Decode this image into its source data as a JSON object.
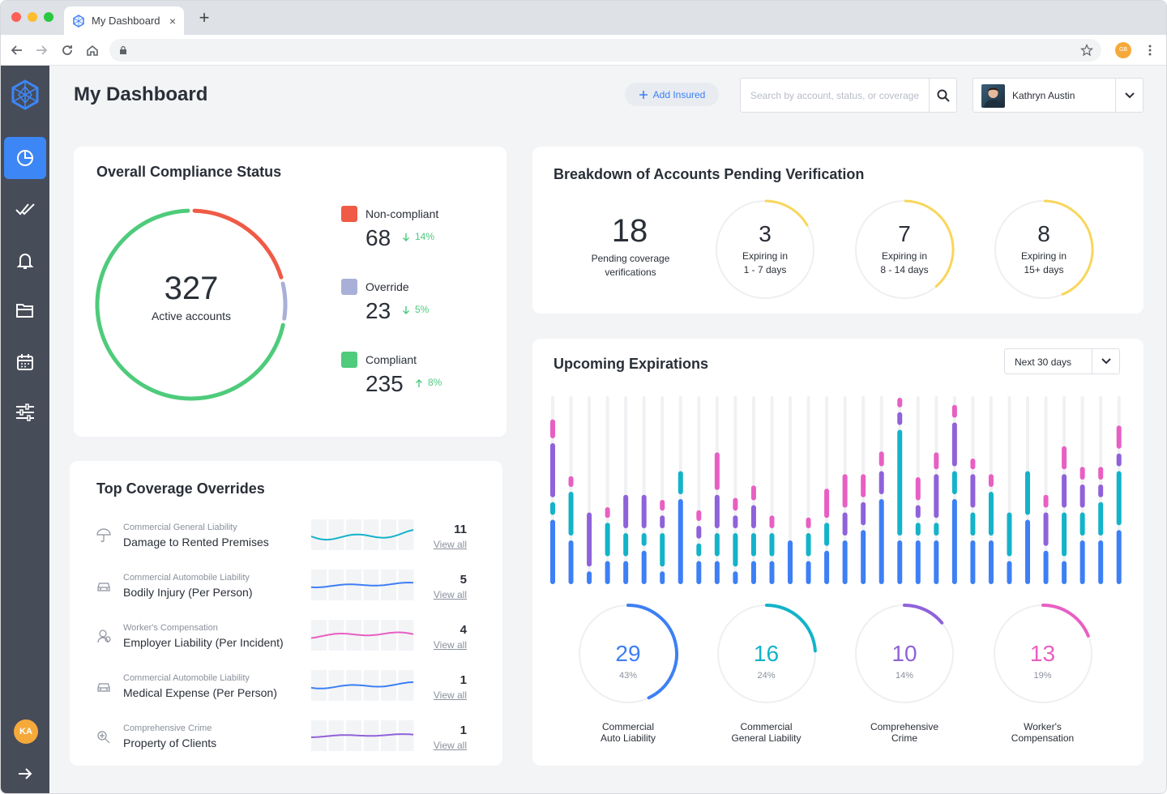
{
  "browser": {
    "tab_title": "My Dashboard",
    "tab_close": "×",
    "new_tab": "+",
    "profile_initials": "GB"
  },
  "header": {
    "title": "My Dashboard",
    "add_insured": "Add Insured",
    "search_placeholder": "Search by account, status, or coverage",
    "user_name": "Kathryn Austin"
  },
  "sidebar": {
    "items": [
      "dashboard",
      "approvals",
      "notifications",
      "files",
      "calendar",
      "settings"
    ],
    "user_initials": "KA"
  },
  "compliance": {
    "title": "Overall Compliance Status",
    "total": "327",
    "total_label": "Active accounts",
    "colors": {
      "noncompliant": "#ef5b46",
      "override": "#a9b0d8",
      "compliant": "#4ecb7b"
    },
    "items": [
      {
        "label": "Non-compliant",
        "value": "68",
        "pct": "14%",
        "direction": "down"
      },
      {
        "label": "Override",
        "value": "23",
        "pct": "5%",
        "direction": "down"
      },
      {
        "label": "Compliant",
        "value": "235",
        "pct": "8%",
        "direction": "up"
      }
    ]
  },
  "pending": {
    "title": "Breakdown of Accounts Pending Verification",
    "total": "18",
    "total_label_1": "Pending coverage",
    "total_label_2": "verifications",
    "color": "#f9d65b",
    "items": [
      {
        "value": "3",
        "line1": "Expiring in",
        "line2": "1 - 7 days",
        "fraction": 0.17
      },
      {
        "value": "7",
        "line1": "Expiring in",
        "line2": "8 - 14 days",
        "fraction": 0.39
      },
      {
        "value": "8",
        "line1": "Expiring in",
        "line2": "15+ days",
        "fraction": 0.44
      }
    ]
  },
  "overrides": {
    "title": "Top Coverage Overrides",
    "link": "View all",
    "rows": [
      {
        "category": "Commercial General Liability",
        "name": "Damage to Rented Premises",
        "count": "11",
        "icon": "umbrella-icon",
        "color": "#13b3c9"
      },
      {
        "category": "Commercial Automobile Liability",
        "name": "Bodily Injury (Per Person)",
        "count": "5",
        "icon": "car-icon",
        "color": "#3d7ff5"
      },
      {
        "category": "Worker's Compensation",
        "name": "Employer Liability (Per Incident)",
        "count": "4",
        "icon": "worker-icon",
        "color": "#e85fc3"
      },
      {
        "category": "Commercial Automobile Liability",
        "name": "Medical Expense (Per Person)",
        "count": "1",
        "icon": "car-icon",
        "color": "#3d7ff5"
      },
      {
        "category": "Comprehensive Crime",
        "name": "Property of Clients",
        "count": "1",
        "icon": "crime-icon",
        "color": "#8f62d9"
      }
    ]
  },
  "expirations": {
    "title": "Upcoming Expirations",
    "range": "Next 30 days",
    "colors": {
      "auto": "#3d7ff5",
      "general": "#13b3c9",
      "crime": "#8f62d9",
      "workers": "#e85fc3"
    },
    "chart_data": {
      "type": "bar",
      "series": [
        {
          "name": "Commercial Auto Liability",
          "values": [
            3,
            2,
            0.5,
            1,
            1,
            1.5,
            0.5,
            4,
            1,
            1,
            0.5,
            1,
            1,
            2,
            1,
            1.5,
            2,
            2.5,
            4,
            2,
            2,
            2,
            4,
            2,
            2,
            1,
            3,
            1.5,
            1,
            2,
            2,
            2.5
          ]
        },
        {
          "name": "Commercial General Liability",
          "values": [
            0.5,
            2,
            0,
            1.5,
            1,
            0.5,
            1.5,
            1,
            0.5,
            1,
            1.5,
            1,
            1,
            0,
            1,
            1,
            0,
            0,
            0,
            5,
            0.5,
            0.5,
            1,
            1,
            2,
            2,
            2,
            0,
            2,
            1,
            1.5,
            2.5
          ]
        },
        {
          "name": "Comprehensive Crime",
          "values": [
            2.5,
            0,
            2.5,
            0,
            1.5,
            1.5,
            0.5,
            0,
            0.5,
            1.5,
            0.5,
            1,
            0,
            0,
            0,
            0,
            1,
            1,
            1,
            0.5,
            0.5,
            2,
            2,
            1.5,
            0,
            0,
            0,
            1.5,
            1.5,
            1,
            0.5,
            0.5
          ]
        },
        {
          "name": "Worker's Compensation",
          "values": [
            0.8,
            0.4,
            0,
            0.4,
            0,
            0,
            0.4,
            0,
            0.4,
            1.7,
            0.5,
            0.6,
            0.5,
            0,
            0.4,
            1.3,
            1.5,
            1,
            0.6,
            0.5,
            1,
            0.7,
            0.5,
            0.4,
            0.5,
            0,
            0,
            0.5,
            1,
            0.5,
            0.5,
            1
          ]
        }
      ]
    },
    "donuts": [
      {
        "value": "29",
        "pct": "43%",
        "line1": "Commercial",
        "line2": "Auto Liability",
        "fraction": 0.43
      },
      {
        "value": "16",
        "pct": "24%",
        "line1": "Commercial",
        "line2": "General Liability",
        "fraction": 0.24
      },
      {
        "value": "10",
        "pct": "14%",
        "line1": "Comprehensive",
        "line2": "Crime",
        "fraction": 0.14
      },
      {
        "value": "13",
        "pct": "19%",
        "line1": "Worker's",
        "line2": "Compensation",
        "fraction": 0.19
      }
    ]
  }
}
